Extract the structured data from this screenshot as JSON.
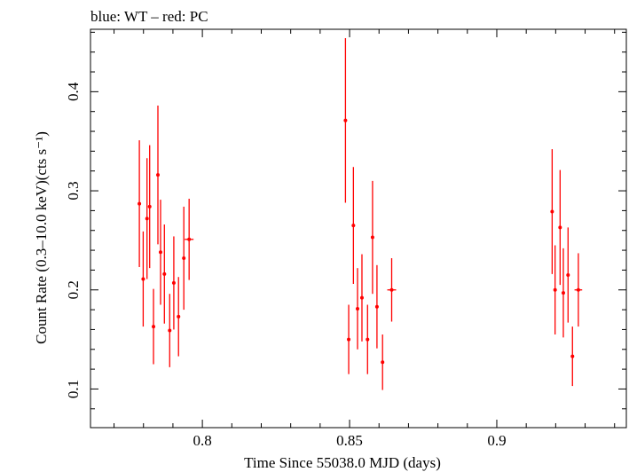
{
  "chart_data": {
    "type": "scatter",
    "title": "blue: WT – red: PC",
    "xlabel": "Time Since 55038.0 MJD (days)",
    "ylabel": "Count Rate (0.3–10.0 keV)(cts s⁻¹)",
    "xlim": [
      0.762,
      0.944
    ],
    "ylim": [
      0.061,
      0.463
    ],
    "x_ticks": [
      0.8,
      0.85,
      0.9
    ],
    "x_tick_labels": [
      "0.8",
      "0.85",
      "0.9"
    ],
    "y_ticks": [
      0.1,
      0.2,
      0.3,
      0.4
    ],
    "y_tick_labels": [
      "0.1",
      "0.2",
      "0.3",
      "0.4"
    ],
    "grid": false,
    "series": [
      {
        "color": "#ff0000",
        "points": [
          {
            "x": 0.7786,
            "y": 0.287,
            "err": 0.064,
            "xerr": 0.0004
          },
          {
            "x": 0.7799,
            "y": 0.211,
            "err": 0.048,
            "xerr": 0.0004
          },
          {
            "x": 0.7812,
            "y": 0.272,
            "err": 0.061,
            "xerr": 0.0004
          },
          {
            "x": 0.7821,
            "y": 0.284,
            "err": 0.062,
            "xerr": 0.0004
          },
          {
            "x": 0.7834,
            "y": 0.163,
            "err": 0.038,
            "xerr": 0.0004
          },
          {
            "x": 0.7849,
            "y": 0.316,
            "err": 0.07,
            "xerr": 0.0004
          },
          {
            "x": 0.7858,
            "y": 0.238,
            "err": 0.053,
            "xerr": 0.0004
          },
          {
            "x": 0.7871,
            "y": 0.216,
            "err": 0.05,
            "xerr": 0.0004
          },
          {
            "x": 0.7889,
            "y": 0.159,
            "err": 0.037,
            "xerr": 0.0004
          },
          {
            "x": 0.7903,
            "y": 0.207,
            "err": 0.047,
            "xerr": 0.0004
          },
          {
            "x": 0.7919,
            "y": 0.173,
            "err": 0.04,
            "xerr": 0.0004
          },
          {
            "x": 0.7937,
            "y": 0.232,
            "err": 0.052,
            "xerr": 0.0004
          },
          {
            "x": 0.7955,
            "y": 0.251,
            "err": 0.041,
            "xerr": 0.0015
          },
          {
            "x": 0.8486,
            "y": 0.371,
            "err": 0.083,
            "xerr": 0.0004
          },
          {
            "x": 0.8497,
            "y": 0.15,
            "err": 0.035,
            "xerr": 0.0004
          },
          {
            "x": 0.8513,
            "y": 0.265,
            "err": 0.059,
            "xerr": 0.0004
          },
          {
            "x": 0.8527,
            "y": 0.181,
            "err": 0.041,
            "xerr": 0.0004
          },
          {
            "x": 0.8542,
            "y": 0.192,
            "err": 0.044,
            "xerr": 0.0004
          },
          {
            "x": 0.8561,
            "y": 0.15,
            "err": 0.035,
            "xerr": 0.0004
          },
          {
            "x": 0.8578,
            "y": 0.253,
            "err": 0.057,
            "xerr": 0.0004
          },
          {
            "x": 0.8593,
            "y": 0.183,
            "err": 0.042,
            "xerr": 0.0004
          },
          {
            "x": 0.8612,
            "y": 0.127,
            "err": 0.028,
            "xerr": 0.0004
          },
          {
            "x": 0.8643,
            "y": 0.2,
            "err": 0.032,
            "xerr": 0.0015
          },
          {
            "x": 0.9188,
            "y": 0.279,
            "err": 0.063,
            "xerr": 0.0004
          },
          {
            "x": 0.9198,
            "y": 0.2,
            "err": 0.045,
            "xerr": 0.0004
          },
          {
            "x": 0.9215,
            "y": 0.263,
            "err": 0.058,
            "xerr": 0.0004
          },
          {
            "x": 0.9226,
            "y": 0.197,
            "err": 0.045,
            "xerr": 0.0004
          },
          {
            "x": 0.9242,
            "y": 0.215,
            "err": 0.048,
            "xerr": 0.0004
          },
          {
            "x": 0.9257,
            "y": 0.133,
            "err": 0.03,
            "xerr": 0.0004
          },
          {
            "x": 0.9277,
            "y": 0.2,
            "err": 0.037,
            "xerr": 0.0013
          }
        ]
      }
    ]
  }
}
